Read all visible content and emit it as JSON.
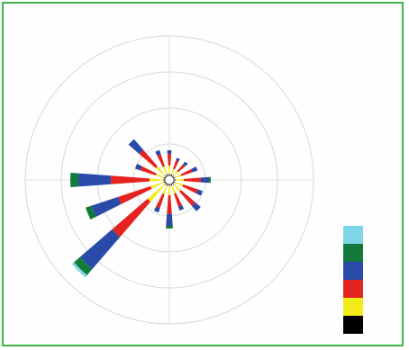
{
  "chart_data": {
    "type": "wind-rose",
    "grid": true,
    "legend_placement": "right",
    "ring_count": 4,
    "bin_colors": [
      "#000000",
      "#f3ec19",
      "#e52421",
      "#2a4aa8",
      "#147a3c",
      "#7fd6e6"
    ],
    "directions_deg": [
      0,
      22.5,
      45,
      67.5,
      90,
      112.5,
      135,
      157.5,
      180,
      202.5,
      225,
      247.5,
      270,
      292.5,
      315,
      337.5
    ],
    "frequencies": [
      [
        0.2,
        0.9,
        1.3,
        0.4,
        0.0,
        0.0
      ],
      [
        0.2,
        0.6,
        1.0,
        0.3,
        0.0,
        0.0
      ],
      [
        0.2,
        0.6,
        1.0,
        0.4,
        0.0,
        0.0
      ],
      [
        0.2,
        0.7,
        1.3,
        0.6,
        0.0,
        0.0
      ],
      [
        0.2,
        0.9,
        1.9,
        0.9,
        0.2,
        0.0
      ],
      [
        0.2,
        0.9,
        1.7,
        0.6,
        0.0,
        0.0
      ],
      [
        0.2,
        1.0,
        2.1,
        0.8,
        0.0,
        0.0
      ],
      [
        0.2,
        0.9,
        1.5,
        0.5,
        0.0,
        0.0
      ],
      [
        0.2,
        1.0,
        2.1,
        1.3,
        0.3,
        0.0
      ],
      [
        0.2,
        1.0,
        1.6,
        0.5,
        0.0,
        0.0
      ],
      [
        0.2,
        2.5,
        5.2,
        4.7,
        0.9,
        0.3
      ],
      [
        0.2,
        1.5,
        3.8,
        3.1,
        0.7,
        0.0
      ],
      [
        0.2,
        1.5,
        4.3,
        3.6,
        0.9,
        0.0
      ],
      [
        0.2,
        0.9,
        1.8,
        0.6,
        0.0,
        0.0
      ],
      [
        0.2,
        1.3,
        2.4,
        1.6,
        0.0,
        0.0
      ],
      [
        0.2,
        0.9,
        1.4,
        0.5,
        0.0,
        0.0
      ]
    ]
  }
}
